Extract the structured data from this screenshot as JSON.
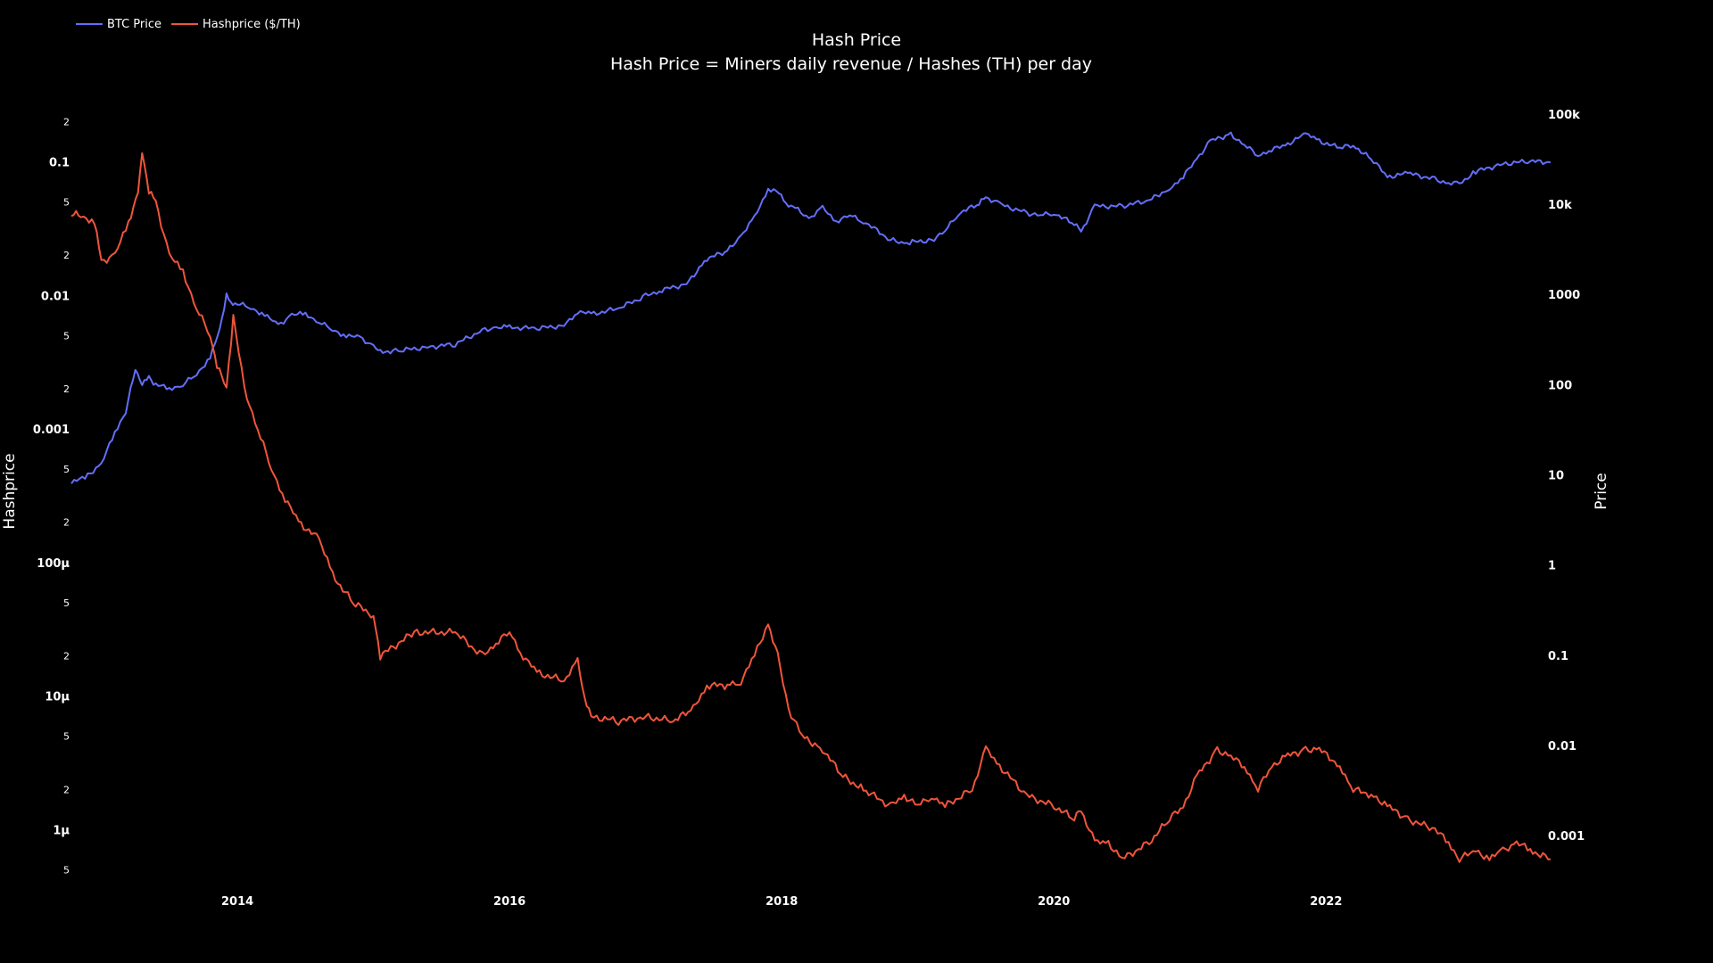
{
  "chart_data": {
    "type": "line",
    "title": "Hash Price",
    "subtitle": "Hash Price = Miners daily revenue / Hashes (TH) per day",
    "y_left_label": "Hashprice",
    "y_right_label": "Price",
    "y_left_scale": "log",
    "y_right_scale": "log",
    "x_range": [
      2012.78,
      2023.65
    ],
    "y_left_range": [
      4e-07,
      0.3
    ],
    "y_right_range": [
      0.0003,
      150000
    ],
    "x_ticks": [
      "2014",
      "2016",
      "2018",
      "2020",
      "2022"
    ],
    "y_left_major_ticks": [
      {
        "label": "0.1",
        "value": 0.1
      },
      {
        "label": "0.01",
        "value": 0.01
      },
      {
        "label": "0.001",
        "value": 0.001
      },
      {
        "label": "100μ",
        "value": 0.0001
      },
      {
        "label": "10μ",
        "value": 1e-05
      },
      {
        "label": "1μ",
        "value": 1e-06
      }
    ],
    "y_left_minor_ticks": [
      {
        "label": "2",
        "value": 0.2
      },
      {
        "label": "5",
        "value": 0.05
      },
      {
        "label": "2",
        "value": 0.02
      },
      {
        "label": "5",
        "value": 0.005
      },
      {
        "label": "2",
        "value": 0.002
      },
      {
        "label": "5",
        "value": 0.0005
      },
      {
        "label": "2",
        "value": 0.0002
      },
      {
        "label": "5",
        "value": 5e-05
      },
      {
        "label": "2",
        "value": 2e-05
      },
      {
        "label": "5",
        "value": 5e-06
      },
      {
        "label": "2",
        "value": 2e-06
      },
      {
        "label": "5",
        "value": 5e-07
      }
    ],
    "y_right_ticks": [
      {
        "label": "100k",
        "value": 100000
      },
      {
        "label": "10k",
        "value": 10000
      },
      {
        "label": "1000",
        "value": 1000
      },
      {
        "label": "100",
        "value": 100
      },
      {
        "label": "10",
        "value": 10
      },
      {
        "label": "1",
        "value": 1
      },
      {
        "label": "0.1",
        "value": 0.1
      },
      {
        "label": "0.01",
        "value": 0.01
      },
      {
        "label": "0.001",
        "value": 0.001
      }
    ],
    "legend_position": "top-left",
    "series": [
      {
        "name": "BTC Price",
        "color": "#636efa",
        "axis": "right",
        "x": [
          2012.78,
          2012.9,
          2013.0,
          2013.1,
          2013.18,
          2013.25,
          2013.3,
          2013.35,
          2013.4,
          2013.5,
          2013.6,
          2013.7,
          2013.8,
          2013.87,
          2013.92,
          2013.95,
          2014.0,
          2014.1,
          2014.2,
          2014.3,
          2014.4,
          2014.5,
          2014.6,
          2014.7,
          2014.8,
          2014.9,
          2015.0,
          2015.05,
          2015.2,
          2015.4,
          2015.6,
          2015.8,
          2015.9,
          2016.0,
          2016.2,
          2016.4,
          2016.5,
          2016.6,
          2016.8,
          2017.0,
          2017.1,
          2017.3,
          2017.45,
          2017.6,
          2017.7,
          2017.8,
          2017.9,
          2017.96,
          2018.05,
          2018.1,
          2018.2,
          2018.3,
          2018.4,
          2018.5,
          2018.6,
          2018.8,
          2018.9,
          2018.96,
          2019.1,
          2019.2,
          2019.3,
          2019.45,
          2019.5,
          2019.6,
          2019.8,
          2019.9,
          2020.0,
          2020.15,
          2020.2,
          2020.3,
          2020.5,
          2020.7,
          2020.85,
          2020.95,
          2021.05,
          2021.15,
          2021.3,
          2021.4,
          2021.5,
          2021.6,
          2021.7,
          2021.85,
          2021.95,
          2022.1,
          2022.2,
          2022.35,
          2022.45,
          2022.6,
          2022.8,
          2022.9,
          2022.98,
          2023.1,
          2023.3,
          2023.5,
          2023.65
        ],
        "y": [
          8,
          10,
          13,
          30,
          50,
          150,
          100,
          120,
          100,
          90,
          100,
          130,
          200,
          400,
          1000,
          800,
          800,
          700,
          600,
          450,
          600,
          600,
          500,
          400,
          350,
          330,
          270,
          230,
          240,
          260,
          280,
          400,
          430,
          430,
          420,
          450,
          650,
          600,
          700,
          960,
          1100,
          1300,
          2500,
          3000,
          4500,
          7000,
          15000,
          14000,
          10000,
          9000,
          7000,
          9000,
          6500,
          7500,
          6500,
          4000,
          3700,
          3800,
          4000,
          5000,
          8000,
          10000,
          12000,
          10000,
          8000,
          7500,
          8000,
          6000,
          5000,
          9500,
          9500,
          11000,
          15000,
          20000,
          32000,
          50000,
          60000,
          45000,
          35000,
          40000,
          45000,
          60000,
          50000,
          42000,
          45000,
          30000,
          20000,
          22000,
          19000,
          17000,
          17000,
          23000,
          28000,
          30000,
          29000
        ]
      },
      {
        "name": "Hashprice ($/TH)",
        "color": "#ef553b",
        "axis": "left",
        "x": [
          2012.78,
          2012.85,
          2012.95,
          2013.0,
          2013.1,
          2013.2,
          2013.27,
          2013.3,
          2013.35,
          2013.4,
          2013.5,
          2013.6,
          2013.7,
          2013.8,
          2013.85,
          2013.92,
          2013.97,
          2014.05,
          2014.15,
          2014.25,
          2014.35,
          2014.45,
          2014.6,
          2014.7,
          2014.85,
          2015.0,
          2015.05,
          2015.3,
          2015.6,
          2015.8,
          2015.9,
          2016.0,
          2016.1,
          2016.2,
          2016.4,
          2016.5,
          2016.55,
          2016.6,
          2016.8,
          2017.0,
          2017.2,
          2017.35,
          2017.45,
          2017.6,
          2017.7,
          2017.8,
          2017.9,
          2017.97,
          2018.05,
          2018.15,
          2018.3,
          2018.45,
          2018.6,
          2018.8,
          2018.9,
          2019.0,
          2019.1,
          2019.2,
          2019.4,
          2019.5,
          2019.6,
          2019.8,
          2020.0,
          2020.15,
          2020.2,
          2020.3,
          2020.4,
          2020.5,
          2020.7,
          2020.85,
          2020.95,
          2021.05,
          2021.2,
          2021.3,
          2021.4,
          2021.5,
          2021.6,
          2021.7,
          2021.85,
          2021.95,
          2022.1,
          2022.2,
          2022.35,
          2022.45,
          2022.6,
          2022.8,
          2022.9,
          2022.98,
          2023.1,
          2023.2,
          2023.3,
          2023.4,
          2023.5,
          2023.65
        ],
        "y": [
          0.04,
          0.04,
          0.035,
          0.018,
          0.02,
          0.035,
          0.06,
          0.12,
          0.06,
          0.05,
          0.02,
          0.015,
          0.008,
          0.005,
          0.003,
          0.002,
          0.007,
          0.002,
          0.001,
          0.0005,
          0.0003,
          0.0002,
          0.00015,
          8e-05,
          5e-05,
          4e-05,
          2e-05,
          3e-05,
          3e-05,
          2e-05,
          2.5e-05,
          3e-05,
          2e-05,
          1.5e-05,
          1.3e-05,
          1.8e-05,
          1e-05,
          7e-06,
          6.5e-06,
          7e-06,
          6.5e-06,
          8e-06,
          1.2e-05,
          1.2e-05,
          1.3e-05,
          2e-05,
          3.5e-05,
          2e-05,
          8e-06,
          5e-06,
          4e-06,
          2.5e-06,
          2e-06,
          1.5e-06,
          1.8e-06,
          1.5e-06,
          1.8e-06,
          1.5e-06,
          2e-06,
          4e-06,
          3e-06,
          1.8e-06,
          1.5e-06,
          1.2e-06,
          1.4e-06,
          8e-07,
          8e-07,
          6e-07,
          8e-07,
          1.2e-06,
          1.5e-06,
          2.5e-06,
          4e-06,
          3.5e-06,
          3e-06,
          2e-06,
          3e-06,
          3.5e-06,
          4e-06,
          4e-06,
          3e-06,
          2e-06,
          1.8e-06,
          1.5e-06,
          1.2e-06,
          1e-06,
          8e-07,
          6e-07,
          7e-07,
          6e-07,
          7e-07,
          8e-07,
          7e-07,
          6e-07
        ]
      }
    ]
  }
}
